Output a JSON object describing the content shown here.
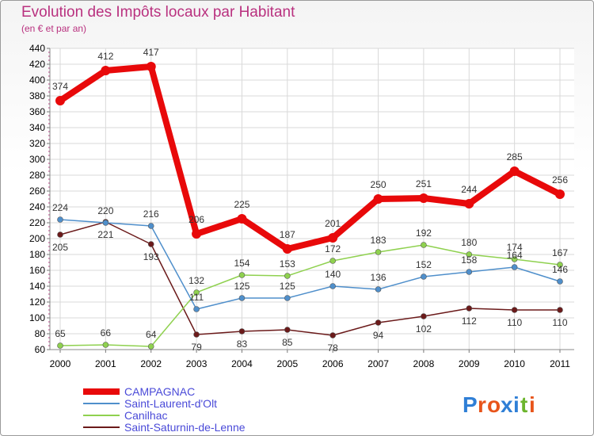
{
  "title": "Evolution des Impôts locaux par Habitant",
  "subtitle": "(en € et par an)",
  "brand": {
    "text": "Proxiti",
    "letters": [
      "P",
      "r",
      "o",
      "x",
      "i",
      "t",
      "i"
    ],
    "colors": [
      "#2f7fd6",
      "#e8541a",
      "#e8541a",
      "#2f7fd6",
      "#2f7fd6",
      "#6cb52d",
      "#e8541a"
    ]
  },
  "chart_data": {
    "type": "line",
    "title": "Evolution des Impôts locaux par Habitant",
    "subtitle": "(en € et par an)",
    "xlabel": "",
    "ylabel": "",
    "categories": [
      "2000",
      "2001",
      "2002",
      "2003",
      "2004",
      "2005",
      "2006",
      "2007",
      "2008",
      "2009",
      "2010",
      "2011"
    ],
    "ylim": [
      60,
      440
    ],
    "yticks": [
      60,
      80,
      100,
      120,
      140,
      160,
      180,
      200,
      220,
      240,
      260,
      280,
      300,
      320,
      340,
      360,
      380,
      400,
      420,
      440
    ],
    "grid": true,
    "legend_position": "bottom-left",
    "series": [
      {
        "name": "CAMPAGNAC",
        "color": "#e8090a",
        "values": [
          374,
          412,
          417,
          206,
          225,
          187,
          201,
          250,
          251,
          244,
          285,
          256
        ]
      },
      {
        "name": "Saint-Laurent-d'Olt",
        "color": "#4f8fcb",
        "values": [
          224,
          220,
          216,
          111,
          125,
          125,
          140,
          136,
          152,
          158,
          164,
          146
        ]
      },
      {
        "name": "Canilhac",
        "color": "#8fd14f",
        "values": [
          65,
          66,
          64,
          132,
          154,
          153,
          172,
          183,
          192,
          180,
          174,
          167
        ]
      },
      {
        "name": "Saint-Saturnin-de-Lenne",
        "color": "#6b1a1a",
        "values": [
          205,
          221,
          193,
          79,
          83,
          85,
          78,
          94,
          102,
          112,
          110,
          110
        ]
      }
    ]
  }
}
